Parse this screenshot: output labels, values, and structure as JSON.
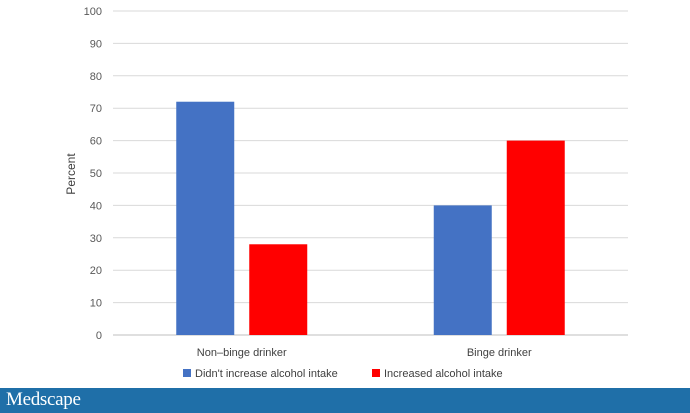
{
  "chart_data": {
    "type": "bar",
    "title": "",
    "xlabel": "",
    "ylabel": "Percent",
    "ylim": [
      0,
      100
    ],
    "yticks": [
      0,
      10,
      20,
      30,
      40,
      50,
      60,
      70,
      80,
      90,
      100
    ],
    "grid": true,
    "legend_position": "bottom",
    "categories": [
      "Non–binge drinker",
      "Binge drinker"
    ],
    "series": [
      {
        "name": "Didn't increase alcohol intake",
        "color": "#4472c4",
        "values": [
          72,
          40
        ]
      },
      {
        "name": "Increased alcohol intake",
        "color": "#ff0000",
        "values": [
          28,
          60
        ]
      }
    ]
  },
  "footer": {
    "logo_text": "Medscape",
    "background_color": "#1f6fa8"
  }
}
